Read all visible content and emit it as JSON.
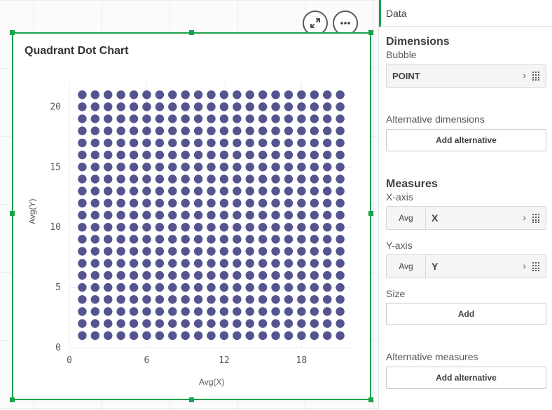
{
  "chart": {
    "title": "Quadrant Dot Chart",
    "x_axis_title": "Avg(X)",
    "y_axis_title": "Avg(Y)",
    "expand_icon": "expand-icon",
    "more_icon": "more-options-icon"
  },
  "chart_data": {
    "type": "scatter",
    "title": "Quadrant Dot Chart",
    "xlabel": "Avg(X)",
    "ylabel": "Avg(Y)",
    "x_ticks": [
      0,
      6,
      12,
      18
    ],
    "y_ticks": [
      0,
      5,
      10,
      15,
      20
    ],
    "xlim": [
      0,
      22
    ],
    "ylim": [
      0,
      22
    ],
    "grid": true,
    "point_color": "#54558f",
    "series": [
      {
        "x_values": [
          1,
          2,
          3,
          4,
          5,
          6,
          7,
          8,
          9,
          10,
          11,
          12,
          13,
          14,
          15,
          16,
          17,
          18,
          19,
          20,
          21
        ],
        "y_values": [
          1,
          2,
          3,
          4,
          5,
          6,
          7,
          8,
          9,
          10,
          11,
          12,
          13,
          14,
          15,
          16,
          17,
          18,
          19,
          20,
          21
        ],
        "note": "grid of points at every (x,y) integer pair"
      }
    ]
  },
  "panel": {
    "tab_label": "Data",
    "dimensions": {
      "title": "Dimensions",
      "bubble_label": "Bubble",
      "bubble_field": "POINT",
      "alt_label": "Alternative dimensions",
      "alt_button": "Add alternative"
    },
    "measures": {
      "title": "Measures",
      "x_label": "X-axis",
      "x_agg": "Avg",
      "x_field": "X",
      "y_label": "Y-axis",
      "y_agg": "Avg",
      "y_field": "Y",
      "size_label": "Size",
      "size_button": "Add",
      "alt_label": "Alternative measures",
      "alt_button": "Add alternative"
    },
    "chevron": "›"
  },
  "colors": {
    "accent": "#1aa24a",
    "point": "#54558f"
  }
}
